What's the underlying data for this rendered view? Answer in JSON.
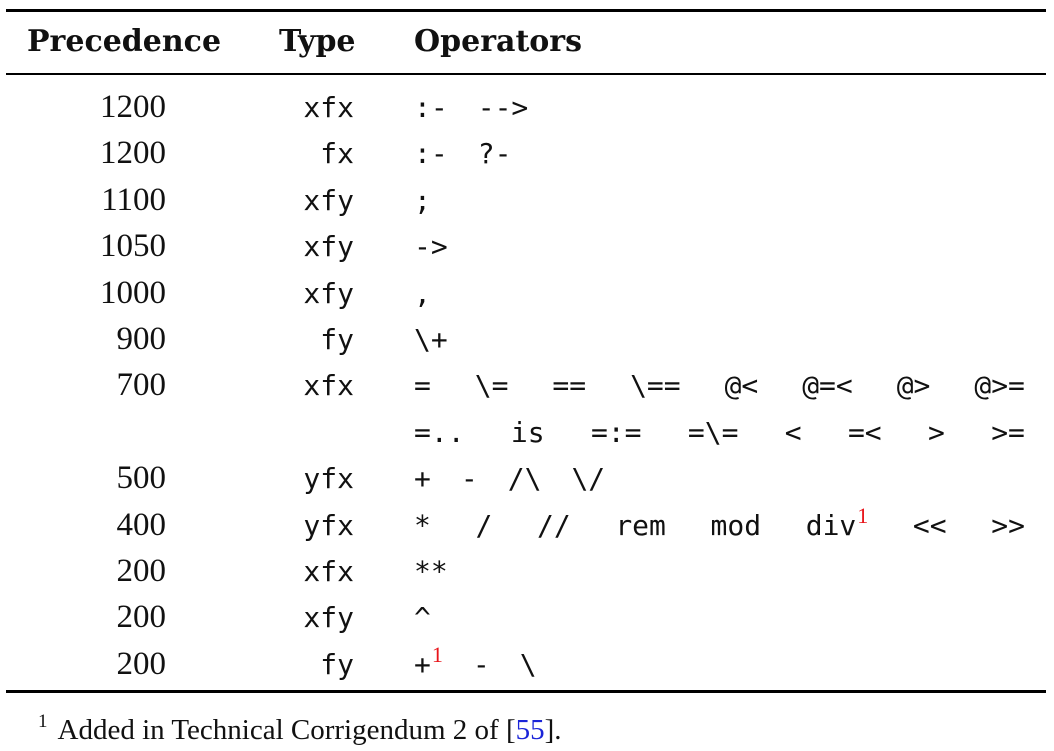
{
  "header": {
    "precedence": "Precedence",
    "type": "Type",
    "operators": "Operators"
  },
  "rows": [
    {
      "precedence": "1200",
      "type": "xfx",
      "operators": [
        ":-",
        "-->"
      ]
    },
    {
      "precedence": "1200",
      "type": "fx",
      "operators": [
        ":-",
        "?-"
      ]
    },
    {
      "precedence": "1100",
      "type": "xfy",
      "operators": [
        ";"
      ]
    },
    {
      "precedence": "1050",
      "type": "xfy",
      "operators": [
        "->"
      ]
    },
    {
      "precedence": "1000",
      "type": "xfy",
      "operators": [
        ","
      ]
    },
    {
      "precedence": "900",
      "type": "fy",
      "operators": [
        "\\+"
      ]
    },
    {
      "precedence": "700",
      "type": "xfx",
      "operators": [
        "=",
        "\\=",
        "==",
        "\\==",
        "@<",
        "@=<",
        "@>",
        "@>="
      ]
    },
    {
      "precedence": "",
      "type": "",
      "operators": [
        "=..",
        "is",
        "=:=",
        "=\\=",
        "<",
        "=<",
        ">",
        ">="
      ]
    },
    {
      "precedence": "500",
      "type": "yfx",
      "operators": [
        "+",
        "-",
        "/\\",
        "\\/"
      ]
    },
    {
      "precedence": "400",
      "type": "yfx",
      "operators": [
        "*",
        "/",
        "//",
        "rem",
        "mod",
        "div",
        "<<",
        ">>"
      ],
      "footnote_after": "div"
    },
    {
      "precedence": "200",
      "type": "xfx",
      "operators": [
        "**"
      ]
    },
    {
      "precedence": "200",
      "type": "xfy",
      "operators": [
        "^"
      ]
    },
    {
      "precedence": "200",
      "type": "fy",
      "operators": [
        "+",
        "-",
        "\\"
      ],
      "footnote_after": "+"
    }
  ],
  "footnote_marker": "1",
  "footnote": {
    "marker": "1",
    "text": "Added in Technical Corrigendum 2 of [",
    "citation": "55",
    "text_end": "]."
  },
  "colors": {
    "footnote_marker": "#e8151b",
    "citation": "#1a24d8"
  }
}
